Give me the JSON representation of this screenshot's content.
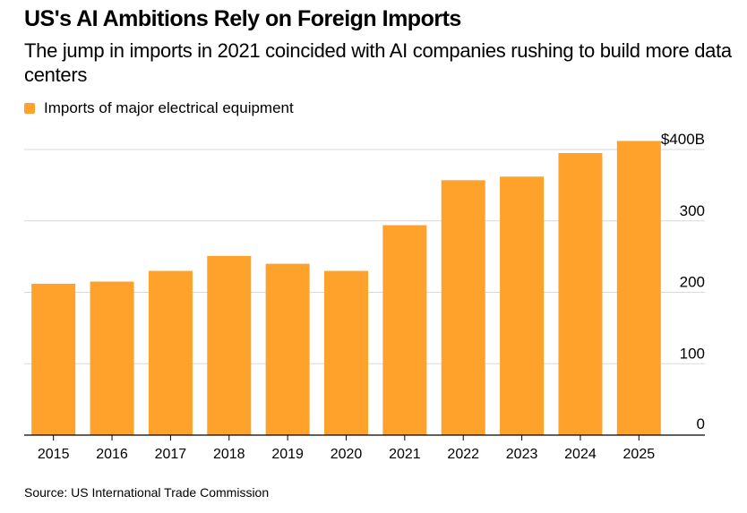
{
  "title": "US's AI Ambitions Rely on Foreign Imports",
  "subtitle": "The jump in imports in 2021 coincided with AI companies rushing to build more data centers",
  "source": "Source: US International Trade Commission",
  "colors": {
    "bar": "#FFA22B",
    "grid": "#D9D9D9",
    "axis": "#000000"
  },
  "chart_data": {
    "type": "bar",
    "title": "US's AI Ambitions Rely on Foreign Imports",
    "legend": [
      {
        "label": "Imports of major electrical equipment",
        "color": "#FFA22B"
      }
    ],
    "legend_position": "top-left",
    "categories": [
      "2015",
      "2016",
      "2017",
      "2018",
      "2019",
      "2020",
      "2021",
      "2022",
      "2023",
      "2024",
      "2025"
    ],
    "series": [
      {
        "name": "Imports of major electrical equipment",
        "values": [
          212,
          215,
          230,
          251,
          240,
          230,
          294,
          357,
          362,
          395,
          412
        ]
      }
    ],
    "ylim": [
      0,
      400
    ],
    "yticks": [
      {
        "value": 0,
        "label": "0"
      },
      {
        "value": 100,
        "label": "100"
      },
      {
        "value": 200,
        "label": "200"
      },
      {
        "value": 300,
        "label": "300"
      },
      {
        "value": 400,
        "label": "$400B"
      }
    ],
    "xlabel": "",
    "ylabel": "",
    "y_axis_side": "right",
    "grid": true
  }
}
